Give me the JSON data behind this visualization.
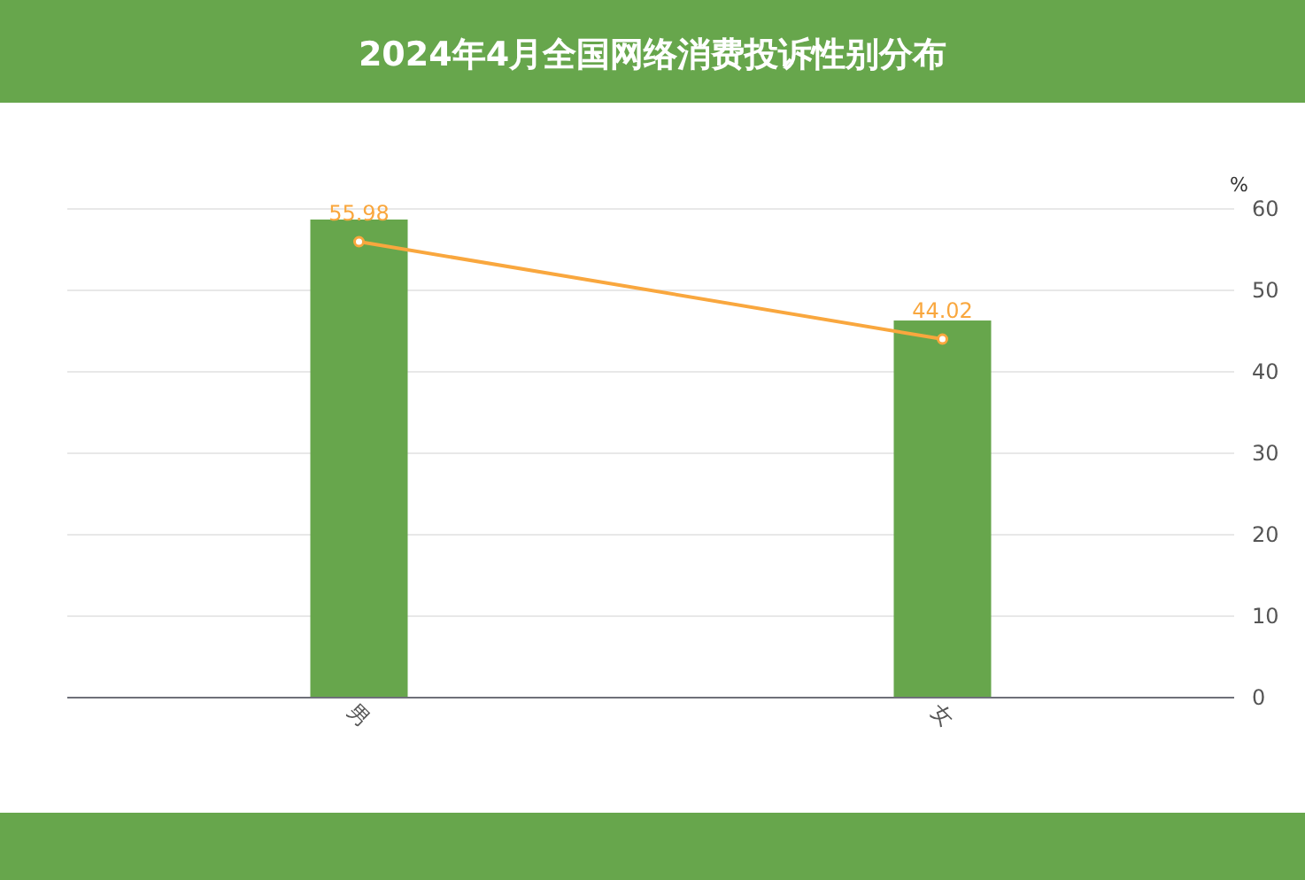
{
  "chart_data": {
    "type": "bar",
    "title": "2024年4月全国网络消费投诉性别分布",
    "ylabel": "%",
    "categories": [
      "男",
      "女"
    ],
    "series": [
      {
        "color": "#67a64c",
        "values": [
          58.7,
          46.3
        ]
      },
      {
        "type": "line",
        "color": "#f9a73e",
        "values": [
          55.98,
          44.02
        ],
        "value_labels": [
          "55.98",
          "44.02"
        ],
        "marker": "circle"
      }
    ],
    "ylim": [
      0,
      60
    ],
    "yticks": [
      0,
      10,
      20,
      30,
      40,
      50,
      60
    ],
    "grid": "y"
  }
}
